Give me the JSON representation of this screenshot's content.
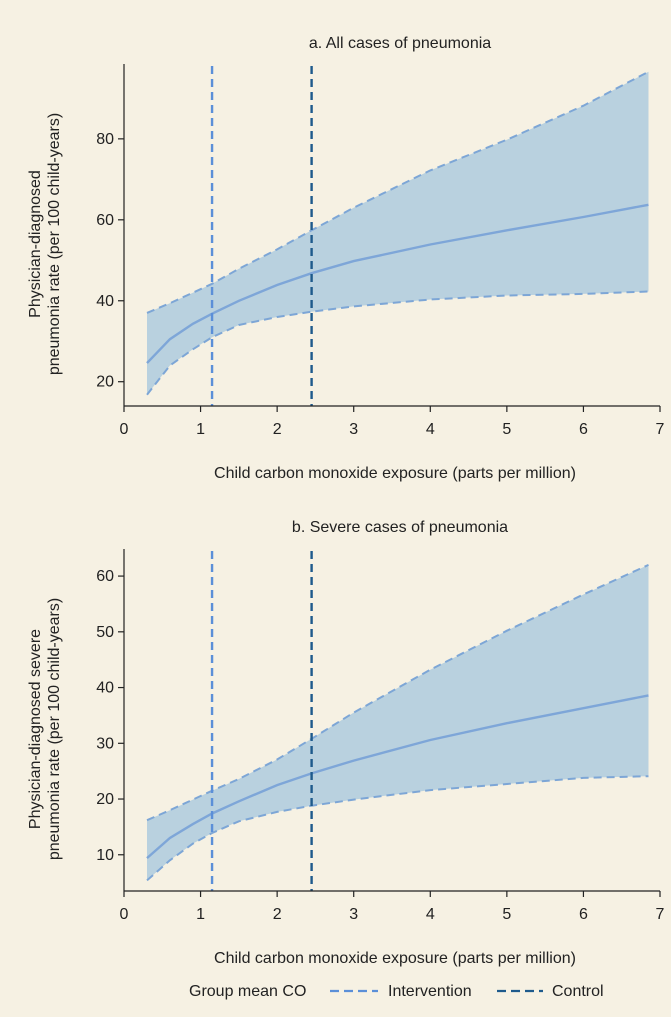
{
  "chart_data": [
    {
      "type": "line",
      "title": "a. All cases of pneumonia",
      "xlabel": "Child carbon monoxide exposure (parts per million)",
      "ylabel_lines": [
        "Physician-diagnosed",
        "pneumonia rate (per 100 child-years)"
      ],
      "xlim": [
        0,
        7
      ],
      "ylim": [
        14,
        98
      ],
      "xticks": [
        0,
        1,
        2,
        3,
        4,
        5,
        6,
        7
      ],
      "yticks": [
        20,
        40,
        60,
        80
      ],
      "x": [
        0.3,
        0.6,
        0.9,
        1.15,
        1.5,
        2.0,
        2.45,
        3.0,
        4.0,
        5.0,
        6.0,
        6.85
      ],
      "series": [
        {
          "role": "estimate",
          "values": [
            24.6,
            30.5,
            34.3,
            36.8,
            40.0,
            43.9,
            46.8,
            49.8,
            53.9,
            57.4,
            60.7,
            63.7
          ]
        },
        {
          "role": "upper_ci",
          "values": [
            37.0,
            39.4,
            42.0,
            44.2,
            47.9,
            52.7,
            57.4,
            63.0,
            72.2,
            79.8,
            88.2,
            96.6
          ]
        },
        {
          "role": "lower_ci",
          "values": [
            16.8,
            24.0,
            28.0,
            31.0,
            34.0,
            36.0,
            37.3,
            38.6,
            40.3,
            41.3,
            41.7,
            42.3
          ]
        }
      ],
      "vlines": [
        {
          "x": 1.15,
          "group": "intervention"
        },
        {
          "x": 2.45,
          "group": "control"
        }
      ]
    },
    {
      "type": "line",
      "title": "b. Severe cases of pneumonia",
      "xlabel": "Child carbon monoxide exposure (parts per million)",
      "ylabel_lines": [
        "Physician-diagnosed severe",
        "pneumonia rate (per 100 child-years)"
      ],
      "xlim": [
        0,
        7
      ],
      "ylim": [
        3.5,
        64.5
      ],
      "xticks": [
        0,
        1,
        2,
        3,
        4,
        5,
        6,
        7
      ],
      "yticks": [
        10,
        20,
        30,
        40,
        50,
        60
      ],
      "x": [
        0.3,
        0.6,
        0.9,
        1.15,
        1.5,
        2.0,
        2.45,
        3.0,
        4.0,
        5.0,
        6.0,
        6.85
      ],
      "series": [
        {
          "role": "estimate",
          "values": [
            9.4,
            13.0,
            15.5,
            17.4,
            19.6,
            22.5,
            24.6,
            26.9,
            30.6,
            33.6,
            36.3,
            38.6
          ]
        },
        {
          "role": "upper_ci",
          "values": [
            16.2,
            18.0,
            19.9,
            21.5,
            23.6,
            27.1,
            30.8,
            35.5,
            43.2,
            50.2,
            56.7,
            62.0
          ]
        },
        {
          "role": "lower_ci",
          "values": [
            5.4,
            9.0,
            12.0,
            13.9,
            16.0,
            17.7,
            18.8,
            19.9,
            21.6,
            22.7,
            23.8,
            24.1
          ]
        }
      ],
      "vlines": [
        {
          "x": 1.15,
          "group": "intervention"
        },
        {
          "x": 2.45,
          "group": "control"
        }
      ]
    }
  ],
  "legend": {
    "title": "Group mean CO",
    "placement": "bottom",
    "items": [
      {
        "label": "Intervention",
        "group": "intervention"
      },
      {
        "label": "Control",
        "group": "control"
      }
    ]
  },
  "colors": {
    "background": "#f6f1e3",
    "band_fill": "#b9d1df",
    "band_edge": "#7da6d6",
    "estimate_line": "#7ea6d8",
    "intervention": "#5b8fd8",
    "control": "#1e5a8c",
    "axis": "#222222"
  }
}
